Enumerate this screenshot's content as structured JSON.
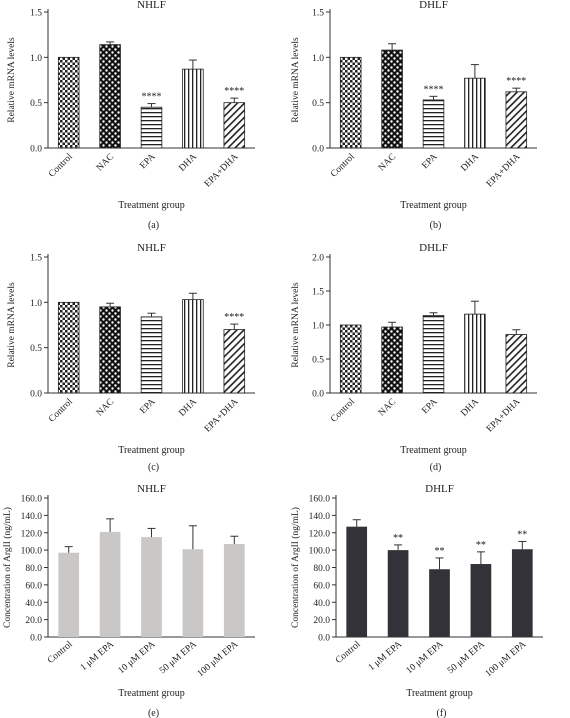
{
  "panels": [
    {
      "id": "a",
      "title": "NHLF",
      "ylabel": "Relative mRNA levels",
      "xlabel": "Treatment group",
      "tag": "(a)"
    },
    {
      "id": "b",
      "title": "DHLF",
      "ylabel": "Relative mRNA levels",
      "xlabel": "Treatment group",
      "tag": "(b)"
    },
    {
      "id": "c",
      "title": "NHLF",
      "ylabel": "Relative mRNA levels",
      "xlabel": "Treatment group",
      "tag": "(c)"
    },
    {
      "id": "d",
      "title": "DHLF",
      "ylabel": "Relative mRNA levels",
      "xlabel": "Treatment group",
      "tag": "(d)"
    },
    {
      "id": "e",
      "title": "NHLF",
      "ylabel": "Concentration of ArgII (ng/mL)",
      "xlabel": "Treatment group",
      "tag": "(e)"
    },
    {
      "id": "f",
      "title": "DHLF",
      "ylabel": "Concentration of ArgII (ng/mL)",
      "xlabel": "Treatment group",
      "tag": "(f)"
    }
  ],
  "chart_data": [
    {
      "type": "bar",
      "title": "NHLF",
      "xlabel": "Treatment group",
      "ylabel": "Relative mRNA levels",
      "ylim": [
        0,
        1.5
      ],
      "yticks": [
        "0.0",
        "0.5",
        "1.0",
        "1.5"
      ],
      "ytick_values": [
        0,
        0.5,
        1.0,
        1.5
      ],
      "categories": [
        "Control",
        "NAC",
        "EPA",
        "DHA",
        "EPA+DHA"
      ],
      "values": [
        1.0,
        1.14,
        0.45,
        0.87,
        0.5
      ],
      "errors": [
        0.0,
        0.03,
        0.04,
        0.1,
        0.05
      ],
      "annotations": [
        "",
        "",
        "****",
        "",
        "****"
      ],
      "patterns": [
        "check",
        "dots",
        "hlines",
        "vlines",
        "diag"
      ]
    },
    {
      "type": "bar",
      "title": "DHLF",
      "xlabel": "Treatment group",
      "ylabel": "Relative mRNA levels",
      "ylim": [
        0,
        1.5
      ],
      "yticks": [
        "0.0",
        "0.5",
        "1.0",
        "1.5"
      ],
      "ytick_values": [
        0,
        0.5,
        1.0,
        1.5
      ],
      "categories": [
        "Control",
        "NAC",
        "EPA",
        "DHA",
        "EPA+DHA"
      ],
      "values": [
        1.0,
        1.08,
        0.53,
        0.77,
        0.62
      ],
      "errors": [
        0.0,
        0.07,
        0.04,
        0.15,
        0.04
      ],
      "annotations": [
        "",
        "",
        "****",
        "",
        "****"
      ],
      "patterns": [
        "check",
        "dots",
        "hlines",
        "vlines",
        "diag"
      ]
    },
    {
      "type": "bar",
      "title": "NHLF",
      "xlabel": "Treatment group",
      "ylabel": "Relative mRNA levels",
      "ylim": [
        0,
        1.5
      ],
      "yticks": [
        "0.0",
        "0.5",
        "1.0",
        "1.5"
      ],
      "ytick_values": [
        0,
        0.5,
        1.0,
        1.5
      ],
      "categories": [
        "Control",
        "NAC",
        "EPA",
        "DHA",
        "EPA+DHA"
      ],
      "values": [
        1.0,
        0.95,
        0.84,
        1.03,
        0.7
      ],
      "errors": [
        0.0,
        0.04,
        0.04,
        0.07,
        0.06
      ],
      "annotations": [
        "",
        "",
        "",
        "",
        "****"
      ],
      "patterns": [
        "check",
        "dots",
        "hlines",
        "vlines",
        "diag"
      ]
    },
    {
      "type": "bar",
      "title": "DHLF",
      "xlabel": "Treatment group",
      "ylabel": "Relative mRNA levels",
      "ylim": [
        0,
        2.0
      ],
      "yticks": [
        "0.0",
        "0.5",
        "1.0",
        "1.5",
        "2.0"
      ],
      "ytick_values": [
        0,
        0.5,
        1.0,
        1.5,
        2.0
      ],
      "categories": [
        "Control",
        "NAC",
        "EPA",
        "DHA",
        "EPA+DHA"
      ],
      "values": [
        1.0,
        0.97,
        1.14,
        1.16,
        0.86
      ],
      "errors": [
        0.0,
        0.07,
        0.04,
        0.19,
        0.07
      ],
      "annotations": [
        "",
        "",
        "",
        "",
        ""
      ],
      "patterns": [
        "check",
        "dots",
        "hlines",
        "vlines",
        "diag"
      ]
    },
    {
      "type": "bar",
      "title": "NHLF",
      "xlabel": "Treatment group",
      "ylabel": "Concentration of ArgII (ng/mL)",
      "ylim": [
        0,
        160
      ],
      "yticks": [
        "0.0",
        "20.0",
        "40.0",
        "60.0",
        "80.0",
        "100.0",
        "120.0",
        "140.0",
        "160.0"
      ],
      "ytick_values": [
        0,
        20,
        40,
        60,
        80,
        100,
        120,
        140,
        160
      ],
      "categories": [
        "Control",
        "1 μM EPA",
        "10 μM EPA",
        "50 μM EPA",
        "100 μM EPA"
      ],
      "values": [
        97,
        121,
        115,
        101,
        107
      ],
      "errors": [
        7,
        15,
        10,
        27,
        9
      ],
      "annotations": [
        "",
        "",
        "",
        "",
        ""
      ],
      "bar_color": "#c9c8c6"
    },
    {
      "type": "bar",
      "title": "DHLF",
      "xlabel": "Treatment group",
      "ylabel": "Concentration of ArgII (ng/mL)",
      "ylim": [
        0,
        160
      ],
      "yticks": [
        "0.0",
        "20.0",
        "40.0",
        "60.0",
        "80.0",
        "100.0",
        "120.0",
        "140.0",
        "160.0"
      ],
      "ytick_values": [
        0,
        20,
        40,
        60,
        80,
        100,
        120,
        140,
        160
      ],
      "categories": [
        "Control",
        "1 μM EPA",
        "10 μM EPA",
        "50 μM EPA",
        "100 μM EPA"
      ],
      "values": [
        127,
        100,
        78,
        84,
        101
      ],
      "errors": [
        8,
        6,
        13,
        14,
        9
      ],
      "annotations": [
        "",
        "**",
        "**",
        "**",
        "**"
      ],
      "bar_color": "#333238"
    }
  ],
  "colors": {
    "axis": "#333333",
    "text": "#222222",
    "bar_outline": "#222222"
  }
}
